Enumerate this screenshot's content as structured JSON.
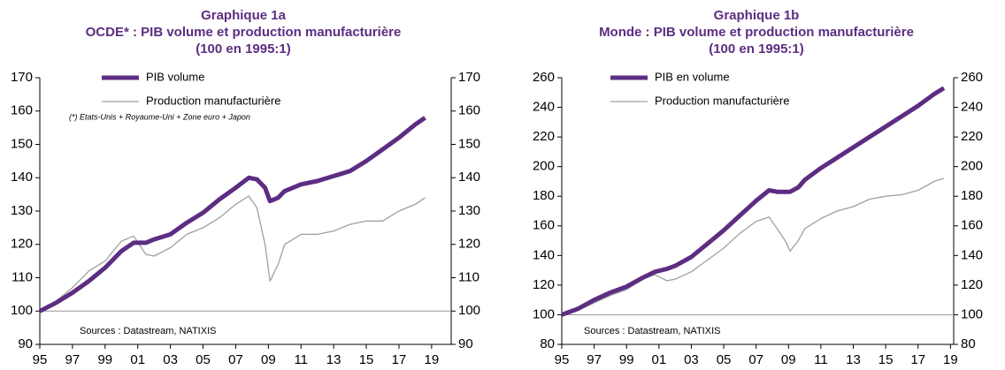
{
  "chart_data": [
    {
      "type": "line",
      "title": [
        "Graphique 1a",
        "OCDE* : PIB volume et production manufacturière",
        "(100 en 1995:1)"
      ],
      "annotations": [
        "(*) Etats-Unis + Royaume-Uni + Zone euro + Japon",
        "Sources : Datastream,  NATIXIS"
      ],
      "x": [
        1995,
        1996,
        1997,
        1998,
        1999,
        2000,
        2000.75,
        2001.5,
        2002,
        2003,
        2004,
        2005,
        2006,
        2007,
        2007.8,
        2008.3,
        2008.8,
        2009.1,
        2009.6,
        2010,
        2011,
        2012,
        2013,
        2014,
        2015,
        2016,
        2017,
        2018,
        2018.6
      ],
      "series": [
        {
          "name": "PIB volume",
          "color": "#5c2d82",
          "values": [
            100,
            102.5,
            105.5,
            109,
            113,
            118,
            120.5,
            120.5,
            121.5,
            123,
            126.5,
            129.5,
            133.5,
            137,
            140,
            139.5,
            137,
            133,
            134,
            136,
            138,
            139,
            140.5,
            142,
            145,
            148.5,
            152,
            156,
            158
          ]
        },
        {
          "name": "Production manufacturière",
          "color": "#a0a0a0",
          "values": [
            100,
            103,
            107,
            112,
            115,
            121,
            122.5,
            117,
            116.5,
            119,
            123,
            125,
            128,
            132,
            134.5,
            131,
            120,
            109,
            114,
            120,
            123,
            123,
            124,
            126,
            127,
            127,
            130,
            132,
            134
          ]
        }
      ],
      "xlim": [
        1995,
        2020.2
      ],
      "xticks": [
        {
          "value": 1995,
          "label": "95"
        },
        {
          "value": 1997,
          "label": "97"
        },
        {
          "value": 1999,
          "label": "99"
        },
        {
          "value": 2001,
          "label": "01"
        },
        {
          "value": 2003,
          "label": "03"
        },
        {
          "value": 2005,
          "label": "05"
        },
        {
          "value": 2007,
          "label": "07"
        },
        {
          "value": 2009,
          "label": "09"
        },
        {
          "value": 2011,
          "label": "11"
        },
        {
          "value": 2013,
          "label": "13"
        },
        {
          "value": 2015,
          "label": "15"
        },
        {
          "value": 2017,
          "label": "17"
        },
        {
          "value": 2019,
          "label": "19"
        }
      ],
      "ylim": [
        90,
        170
      ],
      "yticks": [
        90,
        100,
        110,
        120,
        130,
        140,
        150,
        160,
        170
      ],
      "y2lim": [
        90,
        170
      ],
      "y2ticks": [
        90,
        100,
        110,
        120,
        130,
        140,
        150,
        160,
        170
      ],
      "reference_line": 100
    },
    {
      "type": "line",
      "title": [
        "Graphique 1b",
        "Monde : PIB volume et production manufacturière",
        "(100 en 1995:1)"
      ],
      "annotations": [
        "Sources : Datastream,  NATIXIS"
      ],
      "x": [
        1995,
        1996,
        1997,
        1998,
        1999,
        2000,
        2000.75,
        2001.5,
        2002,
        2003,
        2004,
        2005,
        2006,
        2007,
        2007.8,
        2008.3,
        2008.8,
        2009.1,
        2009.6,
        2010,
        2011,
        2012,
        2013,
        2014,
        2015,
        2016,
        2017,
        2018,
        2018.6
      ],
      "series": [
        {
          "name": "PIB en volume",
          "color": "#5c2d82",
          "values": [
            100,
            104,
            110,
            115,
            119,
            125,
            129,
            131,
            133,
            139,
            148,
            157,
            167,
            177,
            184,
            183,
            183,
            183,
            186,
            191,
            199,
            206,
            213,
            220,
            227,
            234,
            241,
            249,
            253
          ]
        },
        {
          "name": "Production manufacturière",
          "color": "#a0a0a0",
          "values": [
            100,
            103,
            108,
            113,
            117,
            124,
            127,
            123,
            124,
            129,
            137,
            145,
            155,
            163,
            166,
            158,
            150,
            143,
            150,
            158,
            165,
            170,
            173,
            178,
            180,
            181,
            184,
            190,
            192
          ]
        }
      ],
      "xlim": [
        1995,
        2019.2
      ],
      "xticks": [
        {
          "value": 1995,
          "label": "95"
        },
        {
          "value": 1997,
          "label": "97"
        },
        {
          "value": 1999,
          "label": "99"
        },
        {
          "value": 2001,
          "label": "01"
        },
        {
          "value": 2003,
          "label": "03"
        },
        {
          "value": 2005,
          "label": "05"
        },
        {
          "value": 2007,
          "label": "07"
        },
        {
          "value": 2009,
          "label": "09"
        },
        {
          "value": 2011,
          "label": "11"
        },
        {
          "value": 2013,
          "label": "13"
        },
        {
          "value": 2015,
          "label": "15"
        },
        {
          "value": 2017,
          "label": "17"
        },
        {
          "value": 2019,
          "label": "19"
        }
      ],
      "ylim": [
        80,
        260
      ],
      "yticks": [
        80,
        100,
        120,
        140,
        160,
        180,
        200,
        220,
        240,
        260
      ],
      "y2lim": [
        80,
        260
      ],
      "y2ticks": [
        80,
        100,
        120,
        140,
        160,
        180,
        200,
        220,
        240,
        260
      ],
      "reference_line": 100
    }
  ]
}
